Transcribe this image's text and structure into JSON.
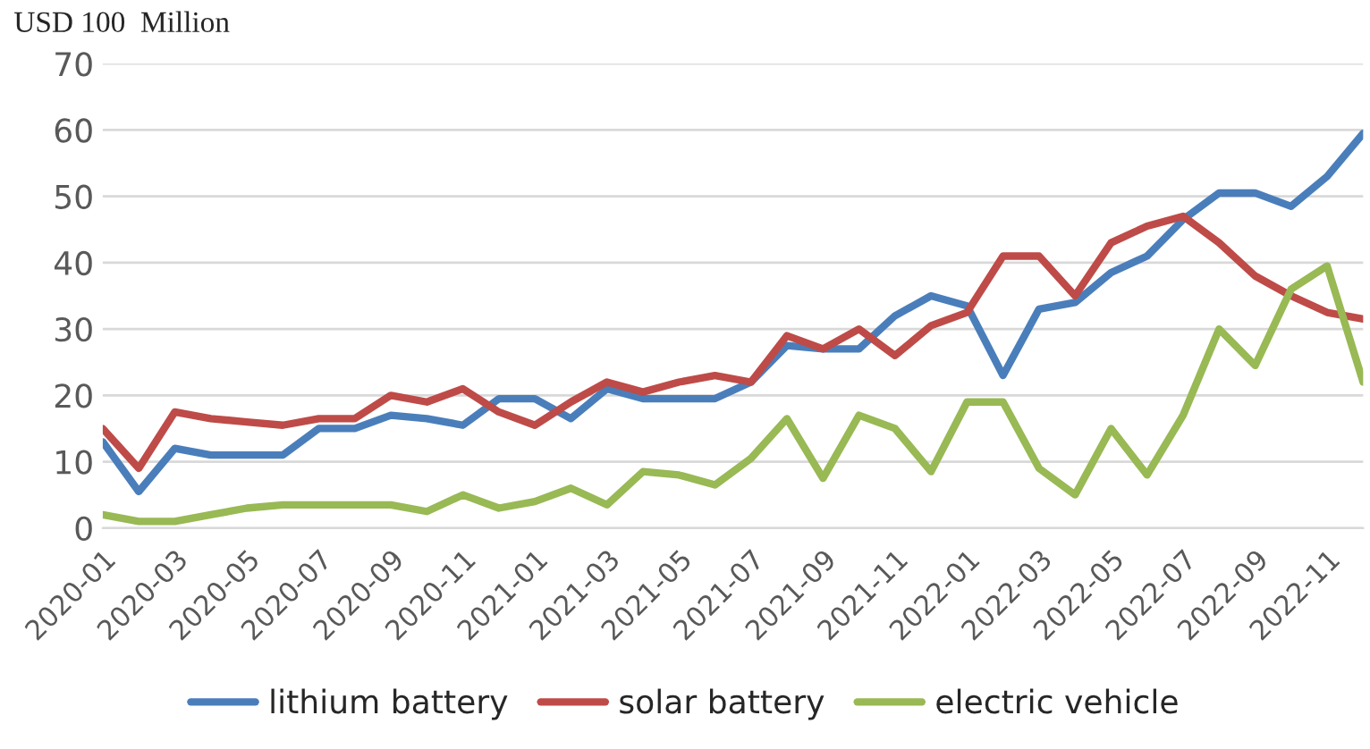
{
  "chart_data": {
    "type": "line",
    "ylabel": "USD 100  Million",
    "categories": [
      "2020-01",
      null,
      "2020-03",
      null,
      "2020-05",
      null,
      "2020-07",
      null,
      "2020-09",
      null,
      "2020-11",
      null,
      "2021-01",
      null,
      "2021-03",
      null,
      "2021-05",
      null,
      "2021-07",
      null,
      "2021-09",
      null,
      "2021-11",
      null,
      "2022-01",
      null,
      "2022-03",
      null,
      "2022-05",
      null,
      "2022-07",
      null,
      "2022-09",
      null,
      "2022-11",
      null
    ],
    "series": [
      {
        "name": "lithium battery",
        "color": "#4a7ebb",
        "values": [
          13,
          5.5,
          12,
          11,
          11,
          11,
          15,
          15,
          17,
          16.5,
          15.5,
          19.5,
          19.5,
          16.5,
          21,
          19.5,
          19.5,
          19.5,
          22,
          27.5,
          27,
          27,
          32,
          35,
          33.5,
          23,
          33,
          34,
          38.5,
          41,
          46.5,
          50.5,
          50.5,
          48.5,
          53,
          59.5
        ]
      },
      {
        "name": "solar battery",
        "color": "#be4b48",
        "values": [
          15,
          9,
          17.5,
          16.5,
          16,
          15.5,
          16.5,
          16.5,
          20,
          19,
          21,
          17.5,
          15.5,
          19,
          22,
          20.5,
          22,
          23,
          22,
          29,
          27,
          30,
          26,
          30.5,
          32.5,
          41,
          41,
          35,
          43,
          45.5,
          47,
          43,
          38,
          35,
          32.5,
          31.5
        ]
      },
      {
        "name": "electric vehicle",
        "color": "#98b954",
        "values": [
          2,
          1,
          1,
          2,
          3,
          3.5,
          3.5,
          3.5,
          3.5,
          2.5,
          5,
          3,
          4,
          6,
          3.5,
          8.5,
          8,
          6.5,
          10.5,
          16.5,
          7.5,
          17,
          15,
          8.5,
          19,
          19,
          9,
          5,
          15,
          8,
          17,
          30,
          24.5,
          36,
          39.5,
          22
        ]
      }
    ],
    "ylim": [
      0,
      70
    ],
    "yticks": [
      0,
      10,
      20,
      30,
      40,
      50,
      60,
      70
    ],
    "grid": "y",
    "legend": "bottom",
    "marker": "none",
    "line_style": "solid"
  }
}
